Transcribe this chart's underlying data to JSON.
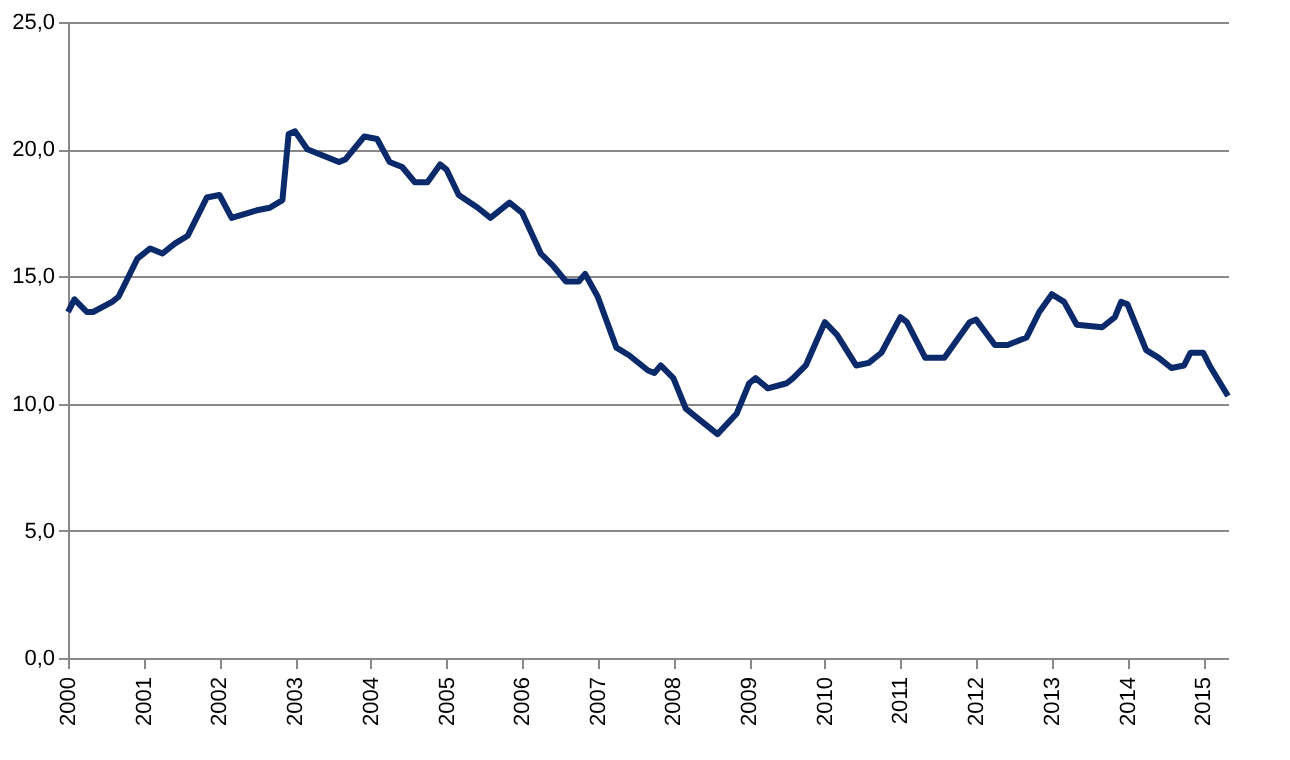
{
  "chart_data": {
    "type": "line",
    "x": [
      "2000-01",
      "2000-02",
      "2000-04",
      "2000-05",
      "2000-08",
      "2000-09",
      "2000-12",
      "2001-02",
      "2001-04",
      "2001-06",
      "2001-08",
      "2001-11",
      "2002-01",
      "2002-03",
      "2002-07",
      "2002-09",
      "2002-11",
      "2002-12",
      "2003-01",
      "2003-03",
      "2003-08",
      "2003-09",
      "2003-12",
      "2004-02",
      "2004-04",
      "2004-06",
      "2004-08",
      "2004-10",
      "2004-12",
      "2005-01",
      "2005-03",
      "2005-06",
      "2005-08",
      "2005-11",
      "2006-01",
      "2006-04",
      "2006-06",
      "2006-08",
      "2006-10",
      "2006-11",
      "2007-01",
      "2007-04",
      "2007-06",
      "2007-09",
      "2007-10",
      "2007-11",
      "2008-01",
      "2008-03",
      "2008-05",
      "2008-08",
      "2008-11",
      "2009-01",
      "2009-02",
      "2009-04",
      "2009-07",
      "2009-08",
      "2009-10",
      "2010-01",
      "2010-03",
      "2010-06",
      "2010-08",
      "2010-10",
      "2011-01",
      "2011-02",
      "2011-05",
      "2011-08",
      "2011-12",
      "2012-01",
      "2012-04",
      "2012-06",
      "2012-08",
      "2012-09",
      "2012-11",
      "2013-01",
      "2013-03",
      "2013-05",
      "2013-09",
      "2013-11",
      "2013-12",
      "2014-01",
      "2014-04",
      "2014-06",
      "2014-08",
      "2014-10",
      "2014-11",
      "2015-01",
      "2015-02",
      "2015-05"
    ],
    "series": [
      {
        "color": "#0b2a6b",
        "values": [
          13.6,
          14.1,
          13.6,
          13.6,
          14.0,
          14.2,
          15.7,
          16.1,
          15.9,
          16.3,
          16.6,
          18.1,
          18.2,
          17.3,
          17.6,
          17.7,
          18.0,
          20.6,
          20.7,
          20.0,
          19.5,
          19.6,
          20.5,
          20.4,
          19.5,
          19.3,
          18.7,
          18.7,
          19.4,
          19.2,
          18.2,
          17.7,
          17.3,
          17.9,
          17.5,
          15.9,
          15.4,
          14.8,
          14.8,
          15.1,
          14.2,
          12.2,
          11.9,
          11.3,
          11.2,
          11.5,
          11.0,
          9.8,
          9.4,
          8.8,
          9.6,
          10.8,
          11.0,
          10.6,
          10.8,
          11.0,
          11.5,
          13.2,
          12.7,
          11.5,
          11.6,
          12.0,
          13.4,
          13.2,
          11.8,
          11.8,
          13.2,
          13.3,
          12.3,
          12.3,
          12.5,
          12.6,
          13.6,
          14.3,
          14.0,
          13.1,
          13.0,
          13.4,
          14.0,
          13.9,
          12.1,
          11.8,
          11.4,
          11.5,
          12.0,
          12.0,
          11.5,
          10.3
        ]
      }
    ],
    "xlim": [
      "2000-01",
      "2015-05"
    ],
    "xticks": [
      "2000",
      "2001",
      "2002",
      "2003",
      "2004",
      "2005",
      "2006",
      "2007",
      "2008",
      "2009",
      "2010",
      "2011",
      "2012",
      "2013",
      "2014",
      "2015"
    ],
    "ylim": [
      0,
      25
    ],
    "yticks": [
      {
        "value": 0,
        "label": "0,0"
      },
      {
        "value": 5,
        "label": "5,0"
      },
      {
        "value": 10,
        "label": "10,0"
      },
      {
        "value": 15,
        "label": "15,0"
      },
      {
        "value": 20,
        "label": "20,0"
      },
      {
        "value": 25,
        "label": "25,0"
      }
    ],
    "grid": "y",
    "legend": false,
    "marker": "none",
    "line_style": "solid"
  }
}
